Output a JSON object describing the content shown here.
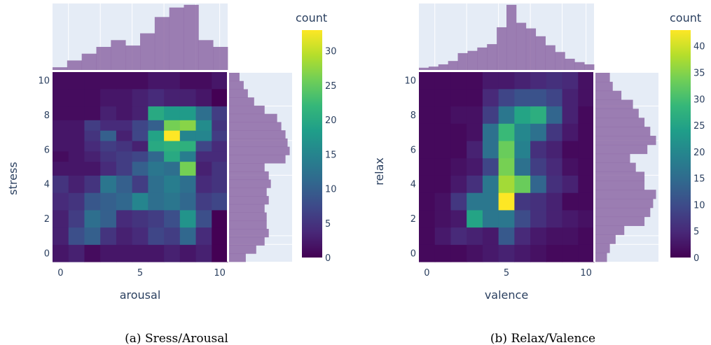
{
  "chart_data": [
    {
      "type": "heatmap",
      "caption": "(a) Sress/Arousal",
      "xlabel": "arousal",
      "ylabel": "stress",
      "x_ticks": [
        "0",
        "5",
        "10"
      ],
      "y_ticks": [
        "0",
        "2",
        "4",
        "6",
        "8",
        "10"
      ],
      "xlim": [
        -0.5,
        10.5
      ],
      "ylim": [
        -0.5,
        10.5
      ],
      "colorbar": {
        "title": "count",
        "range": [
          0,
          33
        ],
        "ticks": [
          "0",
          "5",
          "10",
          "15",
          "20",
          "25",
          "30"
        ],
        "colorscale": "Viridis"
      },
      "z": [
        [
          2,
          3,
          1,
          2,
          2,
          2,
          2,
          3,
          2,
          3,
          0
        ],
        [
          3,
          8,
          10,
          5,
          3,
          4,
          7,
          6,
          11,
          4,
          0
        ],
        [
          3,
          6,
          12,
          10,
          4,
          5,
          6,
          8,
          17,
          8,
          0
        ],
        [
          4,
          5,
          9,
          10,
          11,
          15,
          12,
          13,
          11,
          6,
          7
        ],
        [
          5,
          3,
          5,
          13,
          10,
          6,
          12,
          14,
          12,
          4,
          5
        ],
        [
          2,
          2,
          2,
          4,
          6,
          10,
          13,
          12,
          26,
          3,
          5
        ],
        [
          1,
          2,
          3,
          5,
          6,
          7,
          11,
          20,
          14,
          4,
          4
        ],
        [
          2,
          2,
          4,
          6,
          5,
          3,
          20,
          21,
          21,
          7,
          4
        ],
        [
          2,
          2,
          5,
          10,
          3,
          7,
          19,
          33,
          15,
          15,
          6
        ],
        [
          2,
          2,
          6,
          4,
          4,
          7,
          10,
          26,
          27,
          16,
          5
        ],
        [
          1,
          1,
          1,
          3,
          2,
          3,
          20,
          18,
          18,
          12,
          6
        ],
        [
          1,
          1,
          1,
          2,
          2,
          3,
          4,
          3,
          3,
          2,
          0
        ],
        [
          1,
          1,
          1,
          1,
          1,
          1,
          2,
          2,
          1,
          1,
          2
        ]
      ],
      "z_y": [
        0,
        1,
        2,
        3,
        4,
        5,
        5.6,
        6.2,
        6.8,
        7.4,
        8,
        9,
        10
      ],
      "x_marginal": [
        2,
        7,
        12,
        17,
        22,
        18,
        27,
        39,
        46,
        48,
        22,
        17
      ],
      "y_marginal": [
        8,
        13,
        17,
        19,
        18,
        18,
        17,
        19,
        18,
        20,
        19,
        17,
        27,
        29,
        28,
        27,
        25,
        23,
        17,
        12,
        9,
        7,
        5
      ]
    },
    {
      "type": "heatmap",
      "caption": "(b) Relax/Valence",
      "xlabel": "valence",
      "ylabel": "relax",
      "x_ticks": [
        "0",
        "5",
        "10"
      ],
      "y_ticks": [
        "0",
        "2",
        "4",
        "6",
        "8",
        "10"
      ],
      "xlim": [
        -0.5,
        10.5
      ],
      "ylim": [
        -0.5,
        10.5
      ],
      "colorbar": {
        "title": "count",
        "range": [
          0,
          43
        ],
        "ticks": [
          "0",
          "5",
          "10",
          "15",
          "20",
          "25",
          "30",
          "35",
          "40"
        ],
        "colorscale": "Viridis"
      },
      "z": [
        [
          1,
          1,
          1,
          2,
          3,
          4,
          3,
          2,
          1,
          1,
          1
        ],
        [
          1,
          3,
          5,
          4,
          3,
          12,
          5,
          3,
          2,
          2,
          1
        ],
        [
          1,
          2,
          3,
          25,
          17,
          17,
          10,
          6,
          4,
          3,
          2
        ],
        [
          1,
          2,
          7,
          17,
          17,
          43,
          7,
          6,
          4,
          1,
          1
        ],
        [
          1,
          1,
          3,
          6,
          17,
          37,
          33,
          14,
          6,
          4,
          1
        ],
        [
          1,
          1,
          2,
          3,
          9,
          34,
          16,
          8,
          5,
          2,
          1
        ],
        [
          1,
          1,
          1,
          4,
          16,
          33,
          19,
          6,
          4,
          1,
          1
        ],
        [
          1,
          1,
          1,
          2,
          16,
          29,
          20,
          16,
          7,
          3,
          1
        ],
        [
          1,
          1,
          2,
          2,
          8,
          17,
          25,
          27,
          14,
          4,
          1
        ],
        [
          1,
          1,
          1,
          1,
          5,
          9,
          11,
          11,
          9,
          4,
          2
        ],
        [
          1,
          1,
          1,
          1,
          3,
          3,
          4,
          5,
          6,
          5,
          2
        ]
      ],
      "z_y": [
        0,
        1,
        2,
        3,
        4,
        5,
        6,
        7,
        8,
        9,
        10
      ],
      "x_marginal": [
        2,
        3,
        5,
        8,
        15,
        17,
        20,
        23,
        38,
        58,
        42,
        37,
        30,
        22,
        16,
        10,
        7,
        5
      ],
      "y_marginal": [
        4,
        5,
        7,
        10,
        17,
        19,
        20,
        21,
        17,
        17,
        14,
        12,
        18,
        21,
        19,
        17,
        15,
        13,
        9,
        6,
        5
      ]
    }
  ]
}
